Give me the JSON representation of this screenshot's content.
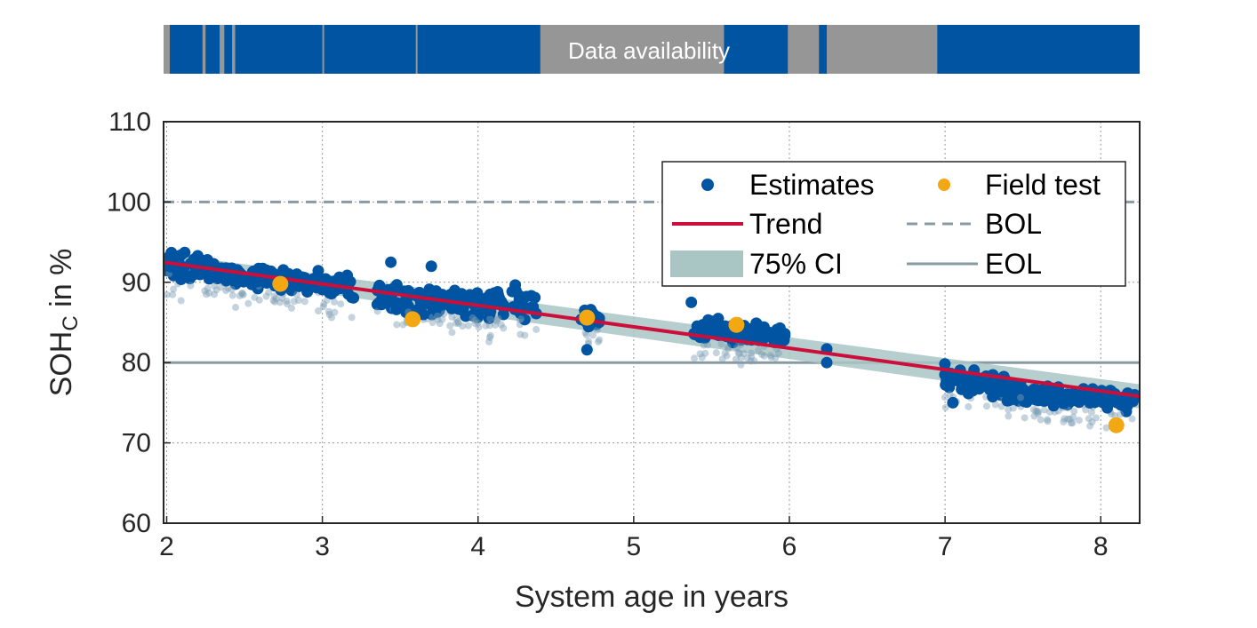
{
  "chart_data": {
    "type": "scatter",
    "title": "",
    "xlabel": "System age in years",
    "ylabel_main": "SOH",
    "ylabel_sub": "C",
    "ylabel_suffix": " in %",
    "xlim": [
      1.98,
      8.25
    ],
    "ylim": [
      60,
      110
    ],
    "x_ticks": [
      2,
      3,
      4,
      5,
      6,
      7,
      8
    ],
    "y_ticks": [
      60,
      70,
      80,
      90,
      100,
      110
    ],
    "grid": true,
    "legend_placement": "top-right",
    "colors": {
      "estimates": "#0054a2",
      "field_test": "#f3a712",
      "trend": "#cc0f3a",
      "ci": "#a9c6c5",
      "bol": "#8a9aa3",
      "eol": "#8a9aa3",
      "avail_on": "#0054a2",
      "avail_off": "#969696"
    },
    "legend": {
      "estimates": "Estimates",
      "field_test": "Field test",
      "trend": "Trend",
      "bol": "BOL",
      "ci": "75% CI",
      "eol": "EOL"
    },
    "availability_label": "Data availability",
    "availability_gaps": [
      [
        1.98,
        2.02
      ],
      [
        2.23,
        2.25
      ],
      [
        2.34,
        2.37
      ],
      [
        2.42,
        2.44
      ],
      [
        3.0,
        3.01
      ],
      [
        3.6,
        3.61
      ],
      [
        4.4,
        5.58
      ],
      [
        5.99,
        6.19
      ],
      [
        6.24,
        6.95
      ]
    ],
    "field_test": {
      "name": "Field test",
      "x": [
        2.73,
        3.58,
        4.7,
        5.66,
        8.1
      ],
      "y": [
        89.8,
        85.4,
        85.6,
        84.7,
        72.2
      ]
    },
    "trend": {
      "name": "Trend",
      "x": [
        1.98,
        8.25
      ],
      "y": [
        92.5,
        75.8
      ]
    },
    "ci": {
      "name": "75% CI",
      "x": [
        1.98,
        8.25
      ],
      "upper": [
        93.6,
        77.3
      ],
      "lower": [
        91.4,
        74.3
      ]
    },
    "bol": {
      "name": "BOL",
      "y": 100
    },
    "eol": {
      "name": "EOL",
      "y": 80
    },
    "estimates": {
      "name": "Estimates",
      "clusters": [
        {
          "x_range": [
            2.0,
            2.45
          ],
          "y_center": 91.8,
          "spread": 1.3,
          "count": 70
        },
        {
          "x_range": [
            2.45,
            3.0
          ],
          "y_center": 90.3,
          "spread": 1.0,
          "count": 80
        },
        {
          "x_range": [
            3.0,
            3.2
          ],
          "y_center": 89.4,
          "spread": 1.0,
          "count": 25
        },
        {
          "x_range": [
            3.35,
            4.1
          ],
          "y_center": 87.6,
          "spread": 1.4,
          "count": 130
        },
        {
          "x_range": [
            4.1,
            4.38
          ],
          "y_center": 87.6,
          "spread": 1.3,
          "count": 35
        },
        {
          "x_range": [
            4.65,
            4.78
          ],
          "y_center": 85.6,
          "spread": 0.9,
          "count": 20
        },
        {
          "x_range": [
            5.38,
            5.98
          ],
          "y_center": 83.8,
          "spread": 1.0,
          "count": 110
        },
        {
          "x_range": [
            6.98,
            7.4
          ],
          "y_center": 77.5,
          "spread": 1.3,
          "count": 50
        },
        {
          "x_range": [
            7.4,
            8.22
          ],
          "y_center": 75.7,
          "spread": 1.0,
          "count": 140
        }
      ],
      "outliers": [
        {
          "x": 2.03,
          "y": 93.7
        },
        {
          "x": 3.44,
          "y": 92.5
        },
        {
          "x": 3.7,
          "y": 92.0
        },
        {
          "x": 4.7,
          "y": 81.6
        },
        {
          "x": 5.37,
          "y": 87.5
        },
        {
          "x": 6.24,
          "y": 81.7
        },
        {
          "x": 6.24,
          "y": 80.0
        },
        {
          "x": 7.05,
          "y": 75.0
        }
      ]
    }
  }
}
